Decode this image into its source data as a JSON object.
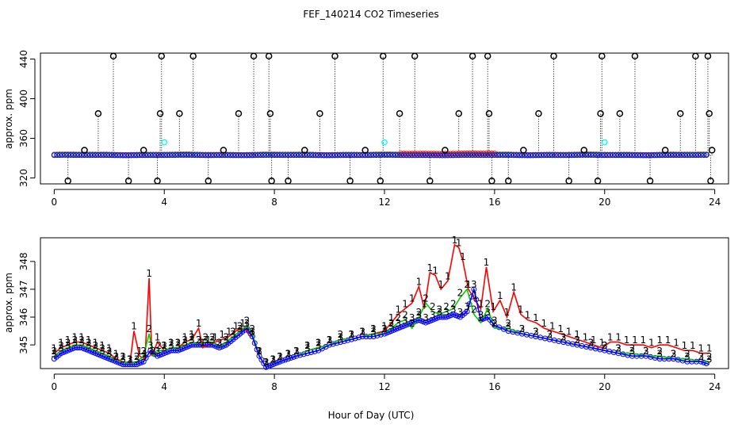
{
  "title": "FEF_140214  CO2 Timeseries",
  "xlabel": "Hour of Day (UTC)",
  "colors": {
    "black": "#000000",
    "red": "#ff0000",
    "green": "#00cd00",
    "blue": "#0000ff",
    "cyan": "#00ffff"
  },
  "chart_data": [
    {
      "type": "scatter",
      "panel": "top",
      "ylabel": "approx. ppm",
      "xlim": [
        -0.5,
        24.5
      ],
      "ylim": [
        314,
        446
      ],
      "xticks": [
        0,
        4,
        8,
        12,
        16,
        20,
        24
      ],
      "yticks": [
        320,
        360,
        400,
        440
      ],
      "grid": false,
      "baseline_ppm": 343,
      "series": [
        {
          "marker": "black-circle",
          "spikes": [
            {
              "x": 0.5,
              "y": 317
            },
            {
              "x": 1.1,
              "y": 348
            },
            {
              "x": 1.6,
              "y": 385
            },
            {
              "x": 2.15,
              "y": 443
            },
            {
              "x": 2.7,
              "y": 317
            },
            {
              "x": 3.25,
              "y": 348
            },
            {
              "x": 3.75,
              "y": 317
            },
            {
              "x": 3.85,
              "y": 385
            },
            {
              "x": 3.9,
              "y": 443
            },
            {
              "x": 4.55,
              "y": 385
            },
            {
              "x": 5.05,
              "y": 443
            },
            {
              "x": 5.6,
              "y": 317
            },
            {
              "x": 6.15,
              "y": 348
            },
            {
              "x": 6.7,
              "y": 385
            },
            {
              "x": 7.25,
              "y": 443
            },
            {
              "x": 7.8,
              "y": 443
            },
            {
              "x": 7.85,
              "y": 385
            },
            {
              "x": 7.9,
              "y": 317
            },
            {
              "x": 8.5,
              "y": 317
            },
            {
              "x": 9.1,
              "y": 348
            },
            {
              "x": 9.65,
              "y": 385
            },
            {
              "x": 10.2,
              "y": 443
            },
            {
              "x": 10.75,
              "y": 317
            },
            {
              "x": 11.3,
              "y": 348
            },
            {
              "x": 11.85,
              "y": 317
            },
            {
              "x": 11.95,
              "y": 443
            },
            {
              "x": 12.55,
              "y": 385
            },
            {
              "x": 13.1,
              "y": 443
            },
            {
              "x": 13.65,
              "y": 317
            },
            {
              "x": 14.2,
              "y": 348
            },
            {
              "x": 14.7,
              "y": 385
            },
            {
              "x": 15.2,
              "y": 443
            },
            {
              "x": 15.75,
              "y": 443
            },
            {
              "x": 15.8,
              "y": 385
            },
            {
              "x": 15.9,
              "y": 317
            },
            {
              "x": 16.5,
              "y": 317
            },
            {
              "x": 17.05,
              "y": 348
            },
            {
              "x": 17.6,
              "y": 385
            },
            {
              "x": 18.15,
              "y": 443
            },
            {
              "x": 18.7,
              "y": 317
            },
            {
              "x": 19.25,
              "y": 348
            },
            {
              "x": 19.75,
              "y": 317
            },
            {
              "x": 19.9,
              "y": 443
            },
            {
              "x": 19.85,
              "y": 385
            },
            {
              "x": 20.55,
              "y": 385
            },
            {
              "x": 21.1,
              "y": 443
            },
            {
              "x": 21.65,
              "y": 317
            },
            {
              "x": 22.2,
              "y": 348
            },
            {
              "x": 22.75,
              "y": 385
            },
            {
              "x": 23.3,
              "y": 443
            },
            {
              "x": 23.85,
              "y": 317
            },
            {
              "x": 23.8,
              "y": 385
            },
            {
              "x": 23.75,
              "y": 443
            },
            {
              "x": 23.9,
              "y": 348
            }
          ]
        },
        {
          "marker": "cyan-circle",
          "points": [
            {
              "x": 4.0,
              "y": 356
            },
            {
              "x": 12.0,
              "y": 356
            },
            {
              "x": 20.0,
              "y": 356
            }
          ]
        }
      ]
    },
    {
      "type": "line",
      "panel": "bottom",
      "ylabel": "approx. ppm",
      "xlim": [
        -0.5,
        24.5
      ],
      "ylim": [
        344.15,
        348.85
      ],
      "xticks": [
        0,
        4,
        8,
        12,
        16,
        20,
        24
      ],
      "yticks": [
        345,
        346,
        347,
        348
      ],
      "grid": false,
      "series": [
        {
          "label_glyph": "1",
          "color": "red",
          "x": [
            0,
            0.25,
            0.5,
            0.75,
            1,
            1.25,
            1.5,
            1.75,
            2,
            2.25,
            2.5,
            2.75,
            2.9,
            3.1,
            3.3,
            3.45,
            3.55,
            3.75,
            4,
            4.25,
            4.5,
            4.75,
            5,
            5.25,
            5.4,
            5.6,
            5.85,
            6.1,
            6.35,
            6.6,
            6.85,
            7,
            7.2,
            7.45,
            7.7,
            7.95,
            8.2,
            8.5,
            8.8,
            9.2,
            9.6,
            10,
            10.4,
            10.8,
            11.2,
            11.6,
            12,
            12.25,
            12.5,
            12.75,
            13,
            13.25,
            13.45,
            13.65,
            13.85,
            14.05,
            14.3,
            14.55,
            14.7,
            14.85,
            15.05,
            15.3,
            15.5,
            15.7,
            15.95,
            16.2,
            16.45,
            16.7,
            16.95,
            17.2,
            17.5,
            17.8,
            18.1,
            18.4,
            18.7,
            19,
            19.3,
            19.6,
            19.9,
            20.2,
            20.5,
            20.8,
            21.1,
            21.4,
            21.7,
            22,
            22.3,
            22.6,
            22.9,
            23.2,
            23.5,
            23.8
          ],
          "y": [
            344.7,
            344.9,
            345.0,
            345.1,
            345.1,
            345.0,
            344.9,
            344.8,
            344.7,
            344.5,
            344.4,
            344.3,
            345.5,
            344.6,
            344.5,
            347.4,
            344.6,
            345.1,
            344.8,
            344.9,
            344.9,
            345.1,
            345.2,
            345.6,
            344.9,
            345.0,
            345.1,
            345.2,
            345.3,
            345.5,
            345.6,
            345.5,
            345.3,
            344.6,
            344.2,
            344.3,
            344.4,
            344.5,
            344.6,
            344.8,
            344.9,
            345.0,
            345.1,
            345.2,
            345.3,
            345.4,
            345.5,
            345.8,
            346.1,
            346.3,
            346.5,
            347.1,
            346.3,
            347.6,
            347.5,
            347.0,
            347.3,
            348.6,
            348.5,
            348.0,
            347.0,
            346.6,
            346.3,
            347.8,
            346.2,
            346.6,
            346.0,
            346.9,
            346.1,
            345.9,
            345.8,
            345.6,
            345.5,
            345.4,
            345.3,
            345.2,
            345.1,
            345.0,
            344.9,
            345.1,
            345.1,
            345.0,
            345.0,
            345.0,
            344.9,
            345.0,
            345.0,
            344.9,
            344.8,
            344.8,
            344.7,
            344.7
          ]
        },
        {
          "label_glyph": "2",
          "color": "green",
          "x": [
            0,
            0.25,
            0.5,
            0.75,
            1,
            1.25,
            1.5,
            1.75,
            2,
            2.25,
            2.5,
            2.75,
            3,
            3.25,
            3.45,
            3.6,
            3.8,
            4,
            4.25,
            4.5,
            4.75,
            5,
            5.25,
            5.5,
            5.75,
            6,
            6.25,
            6.5,
            6.75,
            7,
            7.2,
            7.45,
            7.7,
            7.95,
            8.2,
            8.5,
            8.8,
            9.2,
            9.6,
            10,
            10.4,
            10.8,
            11.2,
            11.6,
            12,
            12.25,
            12.5,
            12.75,
            13,
            13.25,
            13.5,
            13.75,
            14,
            14.25,
            14.5,
            14.75,
            15,
            15.25,
            15.5,
            15.75,
            16,
            16.5,
            17,
            17.5,
            18,
            18.5,
            19,
            19.5,
            20,
            20.5,
            21,
            21.5,
            22,
            22.5,
            23,
            23.5,
            23.8
          ],
          "y": [
            344.6,
            344.8,
            344.9,
            345.0,
            345.0,
            344.9,
            344.8,
            344.7,
            344.6,
            344.4,
            344.4,
            344.3,
            344.4,
            344.6,
            345.4,
            344.6,
            344.8,
            344.8,
            344.9,
            344.9,
            345.0,
            345.1,
            345.0,
            345.1,
            345.1,
            344.9,
            345.1,
            345.3,
            345.5,
            345.7,
            345.4,
            344.6,
            344.2,
            344.3,
            344.4,
            344.5,
            344.6,
            344.8,
            344.9,
            345.0,
            345.2,
            345.2,
            345.3,
            345.4,
            345.4,
            345.6,
            345.8,
            345.9,
            345.6,
            346.0,
            346.5,
            346.2,
            346.1,
            346.2,
            346.3,
            346.7,
            347.0,
            346.1,
            345.8,
            346.3,
            345.6,
            345.6,
            345.4,
            345.3,
            345.2,
            345.1,
            345.0,
            344.9,
            344.8,
            344.7,
            344.7,
            344.6,
            344.6,
            344.5,
            344.5,
            344.4,
            344.4
          ]
        },
        {
          "label_glyph": "3",
          "color": "blue",
          "x": [
            0,
            0.25,
            0.5,
            0.75,
            1,
            1.25,
            1.5,
            1.75,
            2,
            2.25,
            2.5,
            2.75,
            3,
            3.25,
            3.5,
            3.75,
            4,
            4.25,
            4.5,
            4.75,
            5,
            5.25,
            5.5,
            5.75,
            6,
            6.25,
            6.5,
            6.75,
            7,
            7.2,
            7.45,
            7.7,
            7.95,
            8.2,
            8.5,
            8.8,
            9.2,
            9.6,
            10,
            10.4,
            10.8,
            11.2,
            11.6,
            12,
            12.25,
            12.5,
            12.75,
            13,
            13.25,
            13.5,
            13.75,
            14,
            14.25,
            14.5,
            14.75,
            15,
            15.25,
            15.5,
            15.75,
            16,
            16.5,
            17,
            17.5,
            18,
            18.5,
            19,
            19.5,
            20,
            20.5,
            21,
            21.5,
            22,
            22.5,
            23,
            23.5,
            23.8
          ],
          "y": [
            344.5,
            344.7,
            344.8,
            344.9,
            344.9,
            344.8,
            344.7,
            344.6,
            344.5,
            344.4,
            344.3,
            344.3,
            344.3,
            344.4,
            344.8,
            344.6,
            344.7,
            344.8,
            344.8,
            344.9,
            345.0,
            345.0,
            345.0,
            345.0,
            344.9,
            345.0,
            345.2,
            345.4,
            345.6,
            345.3,
            344.6,
            344.2,
            344.3,
            344.4,
            344.5,
            344.6,
            344.7,
            344.8,
            345.0,
            345.1,
            345.2,
            345.3,
            345.3,
            345.4,
            345.5,
            345.6,
            345.7,
            345.8,
            345.9,
            345.8,
            345.9,
            346.0,
            346.0,
            346.1,
            346.0,
            346.2,
            347.0,
            345.9,
            346.0,
            345.7,
            345.5,
            345.4,
            345.3,
            345.2,
            345.1,
            345.0,
            344.9,
            344.8,
            344.7,
            344.6,
            344.6,
            344.5,
            344.5,
            344.4,
            344.4,
            344.3
          ]
        }
      ]
    }
  ]
}
